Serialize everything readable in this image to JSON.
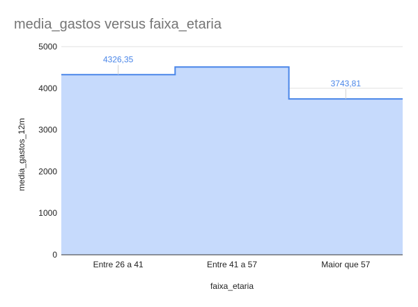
{
  "chart_data": {
    "type": "area",
    "step": true,
    "title": "media_gastos versus faixa_etaria",
    "xlabel": "faixa_etaria",
    "ylabel": "media_gastos_12m",
    "categories": [
      "Entre 26 a 41",
      "Entre 41 a 57",
      "Maior que 57"
    ],
    "values": [
      4326.35,
      4510,
      3743.81
    ],
    "data_labels": [
      "4326,35",
      "",
      "3743,81"
    ],
    "ylim": [
      0,
      5000
    ],
    "yticks": [
      "0",
      "1000",
      "2000",
      "3000",
      "4000",
      "5000"
    ],
    "grid": true,
    "legend": "none",
    "colors": {
      "line": "#4a86e8",
      "fill": "#c6dafc",
      "grid": "#e0e0e0",
      "data_label": "#4a86e8"
    }
  }
}
